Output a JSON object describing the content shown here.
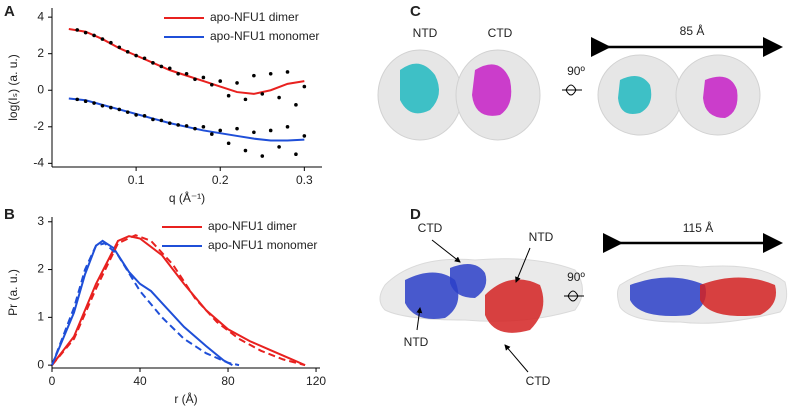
{
  "panel_labels": [
    "A",
    "B",
    "C",
    "D"
  ],
  "chart_data": [
    {
      "type": "line",
      "xlabel": "q (Å⁻¹)",
      "ylabel": "log(Iₛ) (a. u.)",
      "xlim": [
        0,
        0.321
      ],
      "ylim": [
        -4.2,
        4.5
      ],
      "xticks": [
        0.1,
        0.2,
        0.3
      ],
      "yticks": [
        -4,
        -2,
        0,
        2,
        4
      ],
      "legend": "upper right",
      "series": [
        {
          "name": "apo-NFU1 dimer",
          "color": "#e8211f",
          "x": [
            0.02,
            0.04,
            0.06,
            0.08,
            0.1,
            0.12,
            0.14,
            0.16,
            0.18,
            0.2,
            0.22,
            0.24,
            0.26,
            0.28,
            0.3
          ],
          "values": [
            3.35,
            3.2,
            2.8,
            2.3,
            1.9,
            1.5,
            1.1,
            0.8,
            0.5,
            0.2,
            -0.1,
            -0.2,
            0,
            0.35,
            0.5
          ]
        },
        {
          "name": "apo-NFU1 monomer",
          "color": "#1f4fd8",
          "x": [
            0.02,
            0.04,
            0.06,
            0.08,
            0.1,
            0.12,
            0.14,
            0.16,
            0.18,
            0.2,
            0.22,
            0.24,
            0.26,
            0.28,
            0.3
          ],
          "values": [
            -0.45,
            -0.55,
            -0.8,
            -1.05,
            -1.3,
            -1.55,
            -1.8,
            -2.0,
            -2.2,
            -2.35,
            -2.5,
            -2.65,
            -2.75,
            -2.75,
            -2.7
          ]
        }
      ],
      "points": [
        {
          "color": "#000000",
          "x": [
            0.03,
            0.04,
            0.05,
            0.06,
            0.07,
            0.08,
            0.09,
            0.1,
            0.11,
            0.12,
            0.13,
            0.14,
            0.15,
            0.16,
            0.17,
            0.18,
            0.19,
            0.2,
            0.21,
            0.22,
            0.23,
            0.24,
            0.25,
            0.26,
            0.27,
            0.28,
            0.29,
            0.3
          ],
          "values": [
            3.3,
            3.15,
            3.0,
            2.8,
            2.6,
            2.35,
            2.1,
            1.9,
            1.75,
            1.5,
            1.3,
            1.2,
            0.9,
            0.9,
            0.6,
            0.7,
            0.3,
            0.5,
            -0.3,
            0.4,
            -0.5,
            0.8,
            -0.2,
            0.9,
            -0.4,
            1.0,
            -0.8,
            0.2
          ]
        },
        {
          "color": "#000000",
          "x": [
            0.03,
            0.04,
            0.05,
            0.06,
            0.07,
            0.08,
            0.09,
            0.1,
            0.11,
            0.12,
            0.13,
            0.14,
            0.15,
            0.16,
            0.17,
            0.18,
            0.19,
            0.2,
            0.21,
            0.22,
            0.23,
            0.24,
            0.25,
            0.26,
            0.27,
            0.28,
            0.29,
            0.3
          ],
          "values": [
            -0.5,
            -0.6,
            -0.7,
            -0.85,
            -0.95,
            -1.05,
            -1.2,
            -1.35,
            -1.4,
            -1.6,
            -1.65,
            -1.8,
            -1.9,
            -1.95,
            -2.1,
            -2.0,
            -2.4,
            -2.2,
            -2.9,
            -2.1,
            -3.3,
            -2.3,
            -3.6,
            -2.2,
            -3.1,
            -2.0,
            -3.5,
            -2.5
          ]
        }
      ]
    },
    {
      "type": "line",
      "xlabel": "r (Å)",
      "ylabel": "Pr (a. u.)",
      "xlim": [
        0,
        121.8
      ],
      "ylim": [
        -0.06,
        3.1
      ],
      "xticks": [
        0,
        40,
        80,
        120
      ],
      "yticks": [
        0,
        1,
        2,
        3
      ],
      "legend": "upper right",
      "series": [
        {
          "name": "apo-NFU1 dimer",
          "color": "#e8211f",
          "x": [
            0,
            10,
            20,
            30,
            35,
            40,
            50,
            60,
            70,
            80,
            90,
            100,
            110,
            115
          ],
          "values": [
            0,
            0.6,
            1.7,
            2.6,
            2.7,
            2.65,
            2.3,
            1.7,
            1.15,
            0.75,
            0.5,
            0.3,
            0.1,
            0
          ]
        },
        {
          "name": "apo-NFU1 monomer",
          "color": "#1f4fd8",
          "x": [
            0,
            10,
            15,
            20,
            23,
            28,
            35,
            40,
            45,
            50,
            60,
            70,
            78,
            82
          ],
          "values": [
            0,
            1.1,
            1.9,
            2.5,
            2.6,
            2.45,
            1.95,
            1.7,
            1.55,
            1.3,
            0.8,
            0.4,
            0.1,
            0
          ]
        },
        {
          "color": "#e8211f",
          "dashed": true,
          "x": [
            0,
            10,
            20,
            30,
            38,
            45,
            55,
            65,
            75,
            85,
            95,
            105,
            115
          ],
          "values": [
            0,
            0.55,
            1.6,
            2.55,
            2.72,
            2.6,
            2.1,
            1.4,
            0.9,
            0.55,
            0.3,
            0.12,
            0
          ]
        },
        {
          "color": "#1f4fd8",
          "dashed": true,
          "x": [
            0,
            10,
            15,
            20,
            24,
            30,
            40,
            50,
            60,
            70,
            80,
            85
          ],
          "values": [
            0,
            1.2,
            2.0,
            2.5,
            2.55,
            2.3,
            1.55,
            1.0,
            0.55,
            0.25,
            0.05,
            0
          ]
        }
      ]
    }
  ],
  "panel_c": {
    "labels": [
      "NTD",
      "CTD"
    ],
    "rotation": "90º",
    "dimension": "85 Å"
  },
  "panel_d": {
    "labels": [
      "CTD",
      "NTD",
      "NTD",
      "CTD"
    ],
    "rotation": "90º",
    "dimension": "115 Å"
  }
}
